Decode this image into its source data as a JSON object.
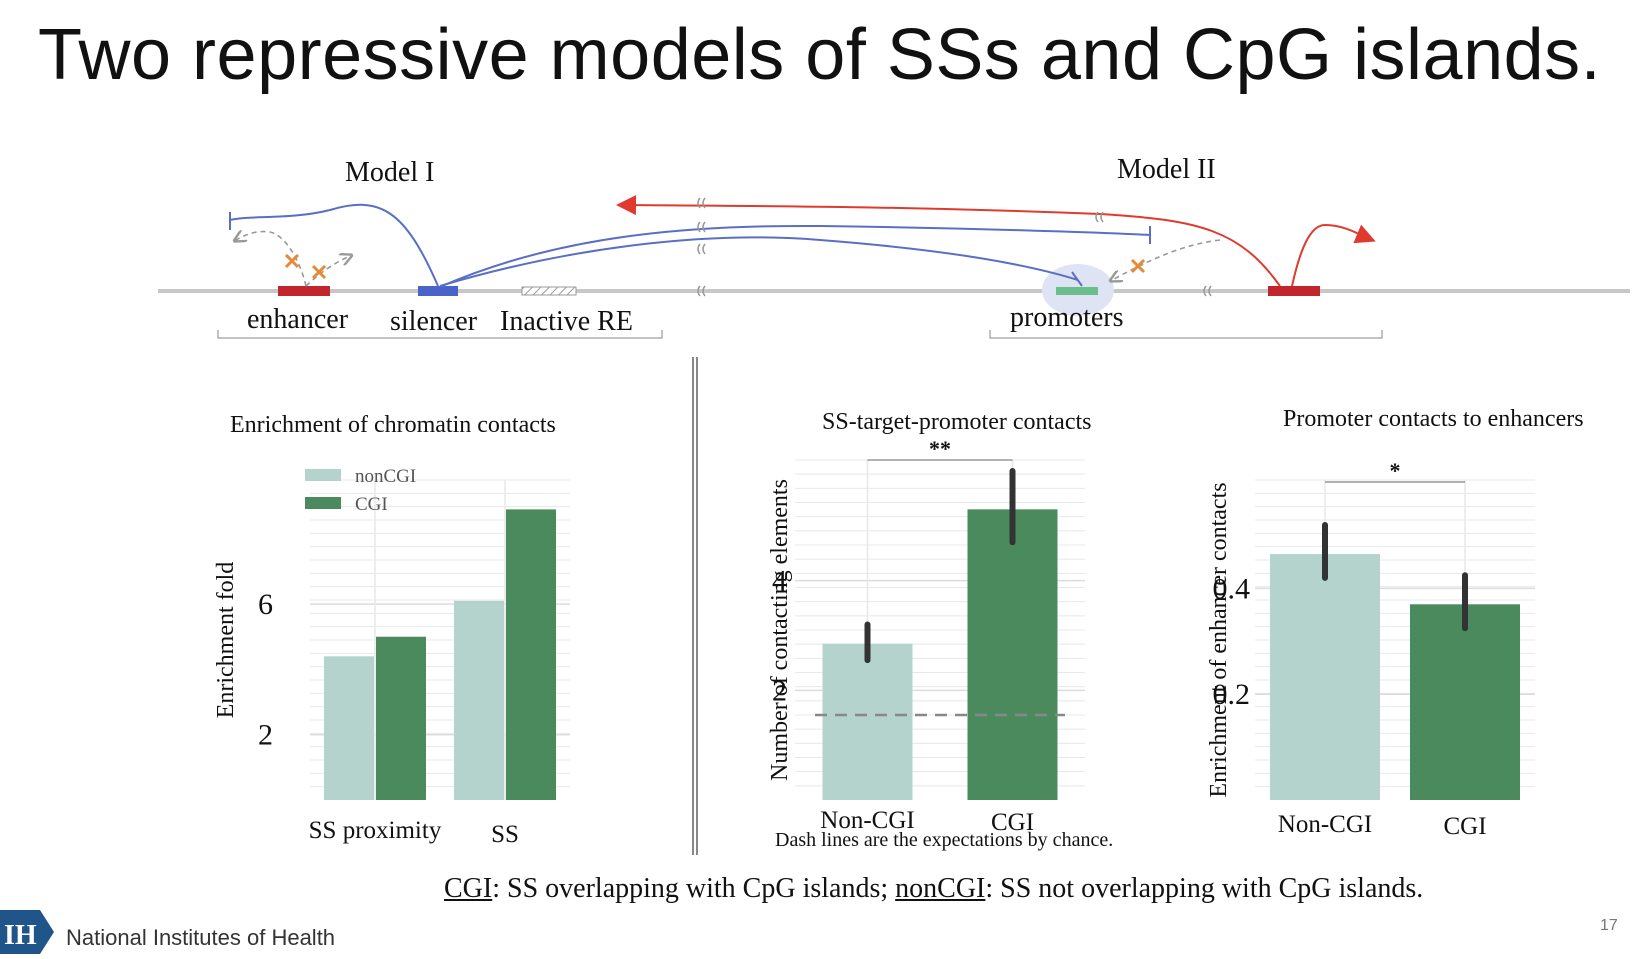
{
  "slide": {
    "title": "Two repressive models of SSs and CpG islands.",
    "page_number": "17",
    "footer_org": "National Institutes of Health",
    "footer_logo_text": "IH",
    "footnote": {
      "cgi_term": "CGI",
      "cgi_def": ": SS overlapping with CpG islands; ",
      "noncgi_term": "nonCGI",
      "noncgi_def": ": SS not overlapping with CpG islands."
    },
    "chance_note": "Dash lines are the expectations by chance."
  },
  "diagram": {
    "model1_label": "Model I",
    "model2_label": "Model II",
    "elements": {
      "enhancer": "enhancer",
      "silencer": "silencer",
      "inactive_re": "Inactive RE",
      "promoters": "promoters"
    },
    "colors": {
      "line": "#c8c8c8",
      "enhancer": "#c0262c",
      "silencer": "#4a63c8",
      "promoter": "#6bbf8e",
      "blue_arc": "#5a6fc4",
      "red_arc": "#e03a2f",
      "cross": "#e58a3a",
      "dashed": "#999999"
    }
  },
  "colors": {
    "noncgi": "#b3d3cc",
    "cgi": "#4a8a5c",
    "errbar": "#333333",
    "grid": "#e8e8e8"
  },
  "chart_data": [
    {
      "type": "bar",
      "title": "Enrichment of chromatin contacts",
      "ylabel": "Enrichment fold",
      "xlabel": "",
      "categories": [
        "SS proximity",
        "SS"
      ],
      "series": [
        {
          "name": "nonCGI",
          "values": [
            4.4,
            6.1
          ]
        },
        {
          "name": "CGI",
          "values": [
            5.0,
            8.9
          ]
        }
      ],
      "yticks": [
        "2",
        "6"
      ],
      "ylim": [
        0,
        9.8
      ],
      "legend": "top-left",
      "grid": true
    },
    {
      "type": "bar",
      "title": "SS-target-promoter contacts",
      "ylabel": "Number of contacting elements",
      "xlabel": "",
      "categories": [
        "Non-CGI",
        "CGI"
      ],
      "values": [
        2.85,
        5.3
      ],
      "error": [
        [
          2.55,
          3.2
        ],
        [
          4.7,
          6.0
        ]
      ],
      "yticks": [
        "2",
        "4"
      ],
      "ylim": [
        0,
        6.2
      ],
      "chance_line": 1.55,
      "significance": "**",
      "grid": true
    },
    {
      "type": "bar",
      "title": "Promoter contacts to enhancers",
      "ylabel": "Enrichment of enhancer contacts",
      "xlabel": "",
      "categories": [
        "Non-CGI",
        "CGI"
      ],
      "values": [
        0.465,
        0.37
      ],
      "error": [
        [
          0.42,
          0.52
        ],
        [
          0.325,
          0.425
        ]
      ],
      "yticks": [
        "0.2",
        "0.4"
      ],
      "ylim": [
        0,
        0.605
      ],
      "significance": "*",
      "grid": true
    }
  ]
}
